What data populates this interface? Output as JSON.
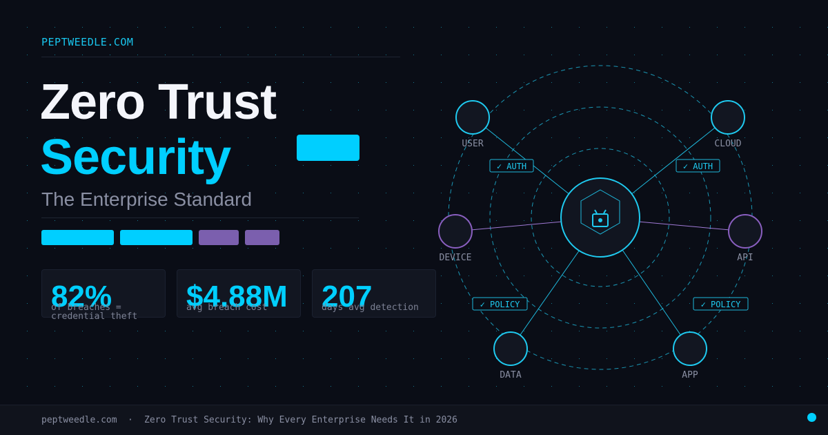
{
  "brand": "PEPTWEEDLE.COM",
  "title": {
    "line1": "Zero Trust",
    "line2": "Security"
  },
  "subtitle": "The Enterprise Standard",
  "stats": [
    {
      "value": "82%",
      "caption": "of breaches = credential theft"
    },
    {
      "value": "$4.88M",
      "caption": "avg breach cost"
    },
    {
      "value": "207",
      "caption": "days avg detection"
    }
  ],
  "diagram": {
    "nodes": [
      "USER",
      "CLOUD",
      "DEVICE",
      "API",
      "DATA",
      "APP"
    ],
    "edge_labels": [
      "✓ AUTH",
      "✓ AUTH",
      "✓ POLICY",
      "✓ POLICY"
    ]
  },
  "footer": {
    "site": "peptweedle.com",
    "separator": "·",
    "headline": "Zero Trust Security: Why Every Enterprise Needs It in 2026"
  }
}
